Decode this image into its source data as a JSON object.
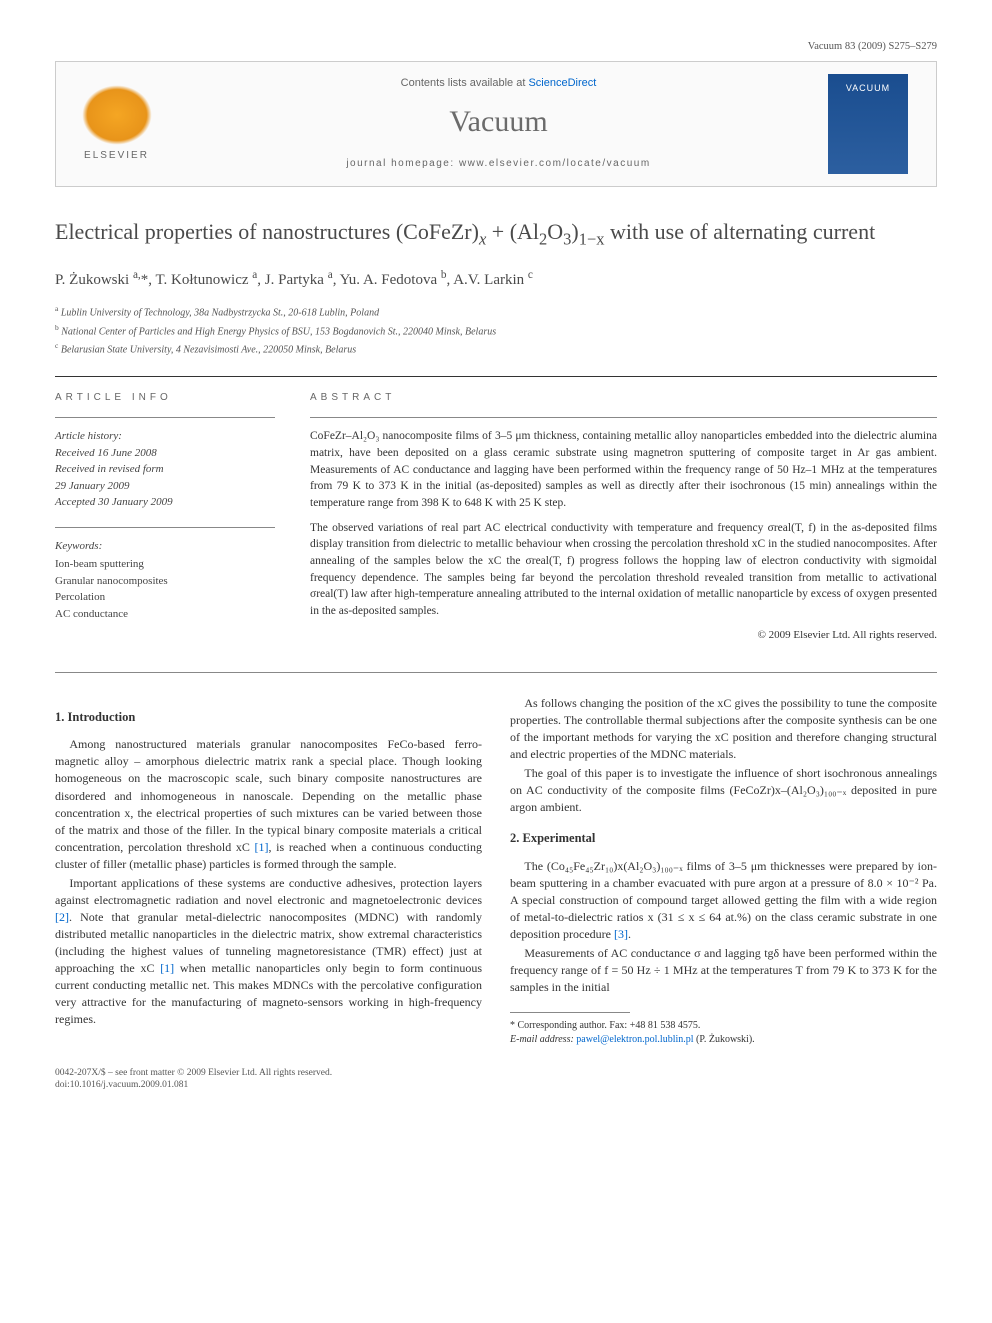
{
  "header": {
    "publisher": "ELSEVIER",
    "contents_prefix": "Contents lists available at ",
    "contents_link": "ScienceDirect",
    "journal_name": "Vacuum",
    "homepage_prefix": "journal homepage: ",
    "homepage_url": "www.elsevier.com/locate/vacuum",
    "cover_text": "VACUUM"
  },
  "article": {
    "title_pre": "Electrical properties of nanostructures (CoFeZr)",
    "title_sub1": "x",
    "title_mid": " + (Al",
    "title_sub2": "2",
    "title_o": "O",
    "title_sub3": "3",
    "title_close": ")",
    "title_sub4": "1−x",
    "title_post": " with use of alternating current",
    "authors_html": "P. Żukowski <sup>a,</sup>*, T. Kołtunowicz <sup>a</sup>, J. Partyka <sup>a</sup>, Yu. A. Fedotova <sup>b</sup>, A.V. Larkin <sup>c</sup>",
    "affiliations": [
      {
        "sup": "a",
        "text": "Lublin University of Technology, 38a Nadbystrzycka St., 20-618 Lublin, Poland"
      },
      {
        "sup": "b",
        "text": "National Center of Particles and High Energy Physics of BSU, 153 Bogdanovich St., 220040 Minsk, Belarus"
      },
      {
        "sup": "c",
        "text": "Belarusian State University, 4 Nezavisimosti Ave., 220050 Minsk, Belarus"
      }
    ]
  },
  "info": {
    "header": "ARTICLE INFO",
    "history_label": "Article history:",
    "history": [
      "Received 16 June 2008",
      "Received in revised form",
      "29 January 2009",
      "Accepted 30 January 2009"
    ],
    "keywords_label": "Keywords:",
    "keywords": [
      "Ion-beam sputtering",
      "Granular nanocomposites",
      "Percolation",
      "AC conductance"
    ]
  },
  "abstract": {
    "header": "ABSTRACT",
    "p1": "CoFeZr–Al₂O₃ nanocomposite films of 3–5 μm thickness, containing metallic alloy nanoparticles embedded into the dielectric alumina matrix, have been deposited on a glass ceramic substrate using magnetron sputtering of composite target in Ar gas ambient. Measurements of AC conductance and lagging have been performed within the frequency range of 50 Hz–1 MHz at the temperatures from 79 K to 373 K in the initial (as-deposited) samples as well as directly after their isochronous (15 min) annealings within the temperature range from 398 K to 648 K with 25 K step.",
    "p2": "The observed variations of real part AC electrical conductivity with temperature and frequency σreal(T, f) in the as-deposited films display transition from dielectric to metallic behaviour when crossing the percolation threshold xC in the studied nanocomposites. After annealing of the samples below the xC the σreal(T, f) progress follows the hopping law of electron conductivity with sigmoidal frequency dependence. The samples being far beyond the percolation threshold revealed transition from metallic to activational σreal(T) law after high-temperature annealing attributed to the internal oxidation of metallic nanoparticle by excess of oxygen presented in the as-deposited samples.",
    "copyright": "© 2009 Elsevier Ltd. All rights reserved."
  },
  "body": {
    "s1_heading": "1. Introduction",
    "s1_p1": "Among nanostructured materials granular nanocomposites FeCo-based ferro-magnetic alloy – amorphous dielectric matrix rank a special place. Though looking homogeneous on the macroscopic scale, such binary composite nanostructures are disordered and inhomogeneous in nanoscale. Depending on the metallic phase concentration x, the electrical properties of such mixtures can be varied between those of the matrix and those of the filler. In the typical binary composite materials a critical concentration, percolation threshold xC ",
    "s1_p1_ref": "[1]",
    "s1_p1b": ", is reached when a continuous conducting cluster of filler (metallic phase) particles is formed through the sample.",
    "s1_p2a": "Important applications of these systems are conductive adhesives, protection layers against electromagnetic radiation and novel electronic and magnetoelectronic devices ",
    "s1_p2_ref1": "[2]",
    "s1_p2b": ". Note that granular metal-dielectric nanocomposites (MDNC) with randomly distributed metallic nanoparticles in the dielectric matrix, show extremal characteristics (including the highest values of tunneling magnetoresistance (TMR) effect) just at approaching the xC ",
    "s1_p2_ref2": "[1]",
    "s1_p2c": " when metallic nanoparticles only begin to form continuous current conducting metallic net. This makes MDNCs with the percolative configuration very attractive for the manufacturing of magneto-sensors working in high-frequency regimes.",
    "s1_p3": "As follows changing the position of the xC gives the possibility to tune the composite properties. The controllable thermal subjections after the composite synthesis can be one of the important methods for varying the xC position and therefore changing structural and electric properties of the MDNC materials.",
    "s1_p4": "The goal of this paper is to investigate the influence of short isochronous annealings on AC conductivity of the composite films (FeCoZr)x–(Al₂O₃)₁₀₀₋ₓ deposited in pure argon ambient.",
    "s2_heading": "2. Experimental",
    "s2_p1a": "The (Co₄₅Fe₄₅Zr₁₀)x(Al₂O₃)₁₀₀₋ₓ films of 3–5 μm thicknesses were prepared by ion-beam sputtering in a chamber evacuated with pure argon at a pressure of 8.0 × 10⁻² Pa. A special construction of compound target allowed getting the film with a wide region of metal-to-dielectric ratios x (31 ≤ x ≤ 64 at.%) on the class ceramic substrate in one deposition procedure ",
    "s2_p1_ref": "[3]",
    "s2_p1b": ".",
    "s2_p2": "Measurements of AC conductance σ and lagging tgδ have been performed within the frequency range of f = 50 Hz ÷ 1 MHz at the temperatures T from 79 K to 373 K for the samples in the initial"
  },
  "footnote": {
    "corr_label": "* Corresponding author. Fax: ",
    "fax": "+48 81 538 4575.",
    "email_label": "E-mail address: ",
    "email": "pawel@elektron.pol.lublin.pl",
    "email_name": " (P. Żukowski)."
  },
  "footer": {
    "issn": "0042-207X/$ – see front matter © 2009 Elsevier Ltd. All rights reserved.",
    "doi": "doi:10.1016/j.vacuum.2009.01.081",
    "page_ref": "Vacuum 83 (2009) S275–S279"
  },
  "colors": {
    "text": "#333333",
    "muted": "#666666",
    "link": "#0066cc",
    "border": "#cccccc",
    "cover_bg": "#1a4d8f",
    "logo_orange": "#f5a623"
  },
  "typography": {
    "title_size": 22,
    "body_size": 12,
    "abstract_size": 11.5,
    "footnote_size": 10
  }
}
